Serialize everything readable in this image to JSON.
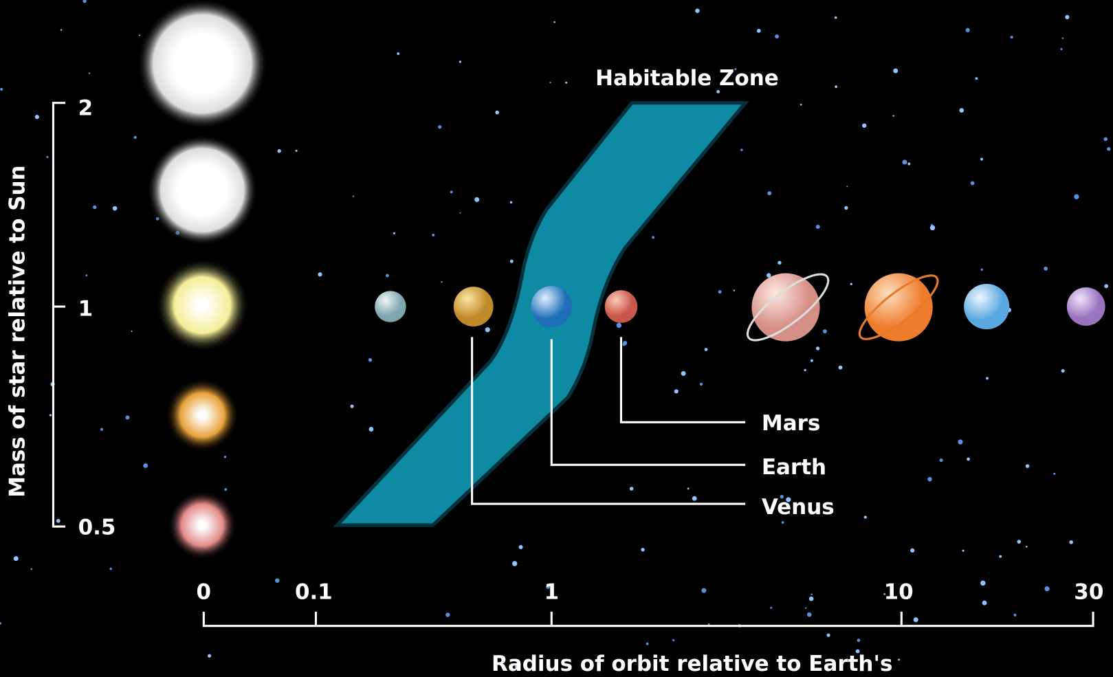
{
  "title": "Habitable Zone",
  "y_axis": {
    "label": "Mass of star relative to Sun",
    "ticks": [
      "2",
      "1",
      "0.5"
    ]
  },
  "x_axis": {
    "label": "Radius of orbit relative to Earth's",
    "ticks": [
      "0",
      "0.1",
      "1",
      "10",
      "30"
    ]
  },
  "planet_labels": [
    "Mars",
    "Earth",
    "Venus"
  ]
}
